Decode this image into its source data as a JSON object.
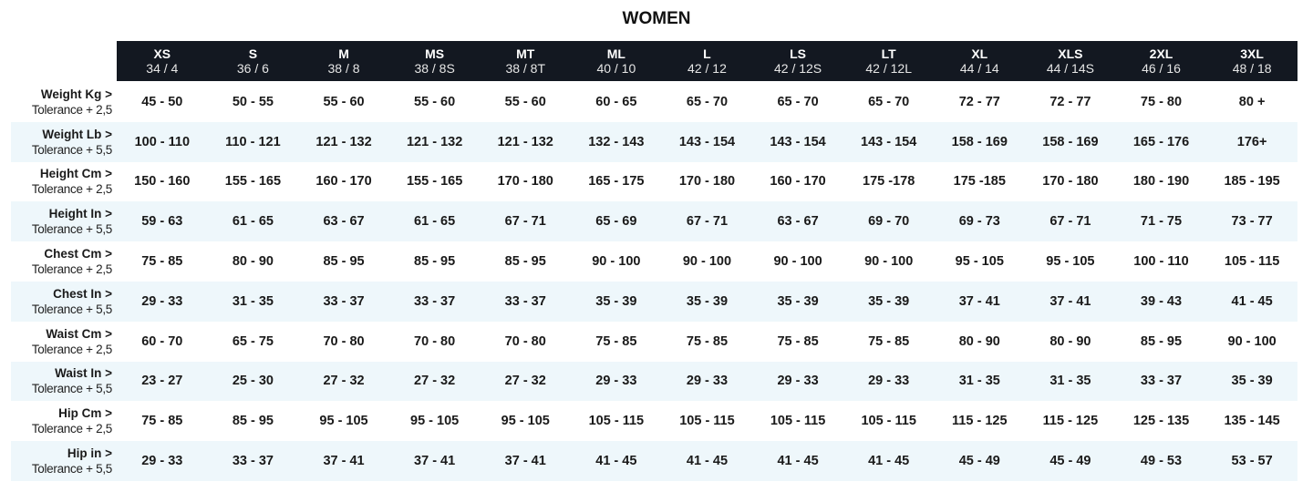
{
  "title": "WOMEN",
  "sizes": [
    {
      "size": "XS",
      "num": "34 / 4"
    },
    {
      "size": "S",
      "num": "36 / 6"
    },
    {
      "size": "M",
      "num": "38 / 8"
    },
    {
      "size": "MS",
      "num": "38 / 8S"
    },
    {
      "size": "MT",
      "num": "38 / 8T"
    },
    {
      "size": "ML",
      "num": "40 / 10"
    },
    {
      "size": "L",
      "num": "42 / 12"
    },
    {
      "size": "LS",
      "num": "42 / 12S"
    },
    {
      "size": "LT",
      "num": "42 / 12L"
    },
    {
      "size": "XL",
      "num": "44 / 14"
    },
    {
      "size": "XLS",
      "num": "44 / 14S"
    },
    {
      "size": "2XL",
      "num": "46 / 16"
    },
    {
      "size": "3XL",
      "num": "48 / 18"
    }
  ],
  "rows": [
    {
      "measure": "Weight Kg >",
      "tolerance": "Tolerance + 2,5",
      "values": [
        "45 - 50",
        "50 - 55",
        "55 - 60",
        "55 - 60",
        "55 - 60",
        "60 - 65",
        "65 - 70",
        "65 - 70",
        "65 - 70",
        "72 - 77",
        "72 - 77",
        "75 - 80",
        "80 +"
      ]
    },
    {
      "measure": "Weight Lb >",
      "tolerance": "Tolerance + 5,5",
      "values": [
        "100 - 110",
        "110 - 121",
        "121 - 132",
        "121 - 132",
        "121 - 132",
        "132 - 143",
        "143 - 154",
        "143 - 154",
        "143 - 154",
        "158 - 169",
        "158 - 169",
        "165 - 176",
        "176+"
      ]
    },
    {
      "measure": "Height Cm >",
      "tolerance": "Tolerance + 2,5",
      "values": [
        "150 - 160",
        "155 - 165",
        "160 - 170",
        "155 - 165",
        "170 - 180",
        "165 - 175",
        "170 - 180",
        "160 - 170",
        "175 -178",
        "175 -185",
        "170 - 180",
        "180 - 190",
        "185 - 195"
      ]
    },
    {
      "measure": "Height In >",
      "tolerance": "Tolerance + 5,5",
      "values": [
        "59 - 63",
        "61 - 65",
        "63 - 67",
        "61 - 65",
        "67 - 71",
        "65 - 69",
        "67 - 71",
        "63 - 67",
        "69 - 70",
        "69 - 73",
        "67 - 71",
        "71 - 75",
        "73 - 77"
      ]
    },
    {
      "measure": "Chest Cm >",
      "tolerance": "Tolerance + 2,5",
      "values": [
        "75 - 85",
        "80 - 90",
        "85 - 95",
        "85 - 95",
        "85 - 95",
        "90 - 100",
        "90 - 100",
        "90 - 100",
        "90 - 100",
        "95 - 105",
        "95 - 105",
        "100 - 110",
        "105 - 115"
      ]
    },
    {
      "measure": "Chest In >",
      "tolerance": "Tolerance + 5,5",
      "values": [
        "29 - 33",
        "31 - 35",
        "33 - 37",
        "33 - 37",
        "33 - 37",
        "35 - 39",
        "35 - 39",
        "35 - 39",
        "35 - 39",
        "37 - 41",
        "37 - 41",
        "39 - 43",
        "41 - 45"
      ]
    },
    {
      "measure": "Waist Cm >",
      "tolerance": "Tolerance + 2,5",
      "values": [
        "60 - 70",
        "65 - 75",
        "70 - 80",
        "70 - 80",
        "70 - 80",
        "75 - 85",
        "75 - 85",
        "75 - 85",
        "75 - 85",
        "80 - 90",
        "80 - 90",
        "85 - 95",
        "90 - 100"
      ]
    },
    {
      "measure": "Waist In >",
      "tolerance": "Tolerance + 5,5",
      "values": [
        "23 - 27",
        "25 - 30",
        "27 - 32",
        "27 - 32",
        "27 - 32",
        "29 - 33",
        "29 - 33",
        "29 - 33",
        "29 - 33",
        "31 - 35",
        "31 - 35",
        "33 - 37",
        "35 - 39"
      ]
    },
    {
      "measure": "Hip Cm >",
      "tolerance": "Tolerance + 2,5",
      "values": [
        "75 - 85",
        "85 - 95",
        "95 - 105",
        "95 - 105",
        "95 - 105",
        "105 - 115",
        "105 - 115",
        "105 - 115",
        "105 - 115",
        "115 - 125",
        "115 - 125",
        "125 - 135",
        "135 - 145"
      ]
    },
    {
      "measure": "Hip in >",
      "tolerance": "Tolerance + 5,5",
      "values": [
        "29 - 33",
        "33 - 37",
        "37 - 41",
        "37 - 41",
        "37 - 41",
        "41 - 45",
        "41 - 45",
        "41 - 45",
        "41 - 45",
        "45 - 49",
        "45 - 49",
        "49 - 53",
        "53 - 57"
      ]
    }
  ],
  "colors": {
    "header_bg": "#131821",
    "alt_row_bg": "#eef7fb"
  }
}
